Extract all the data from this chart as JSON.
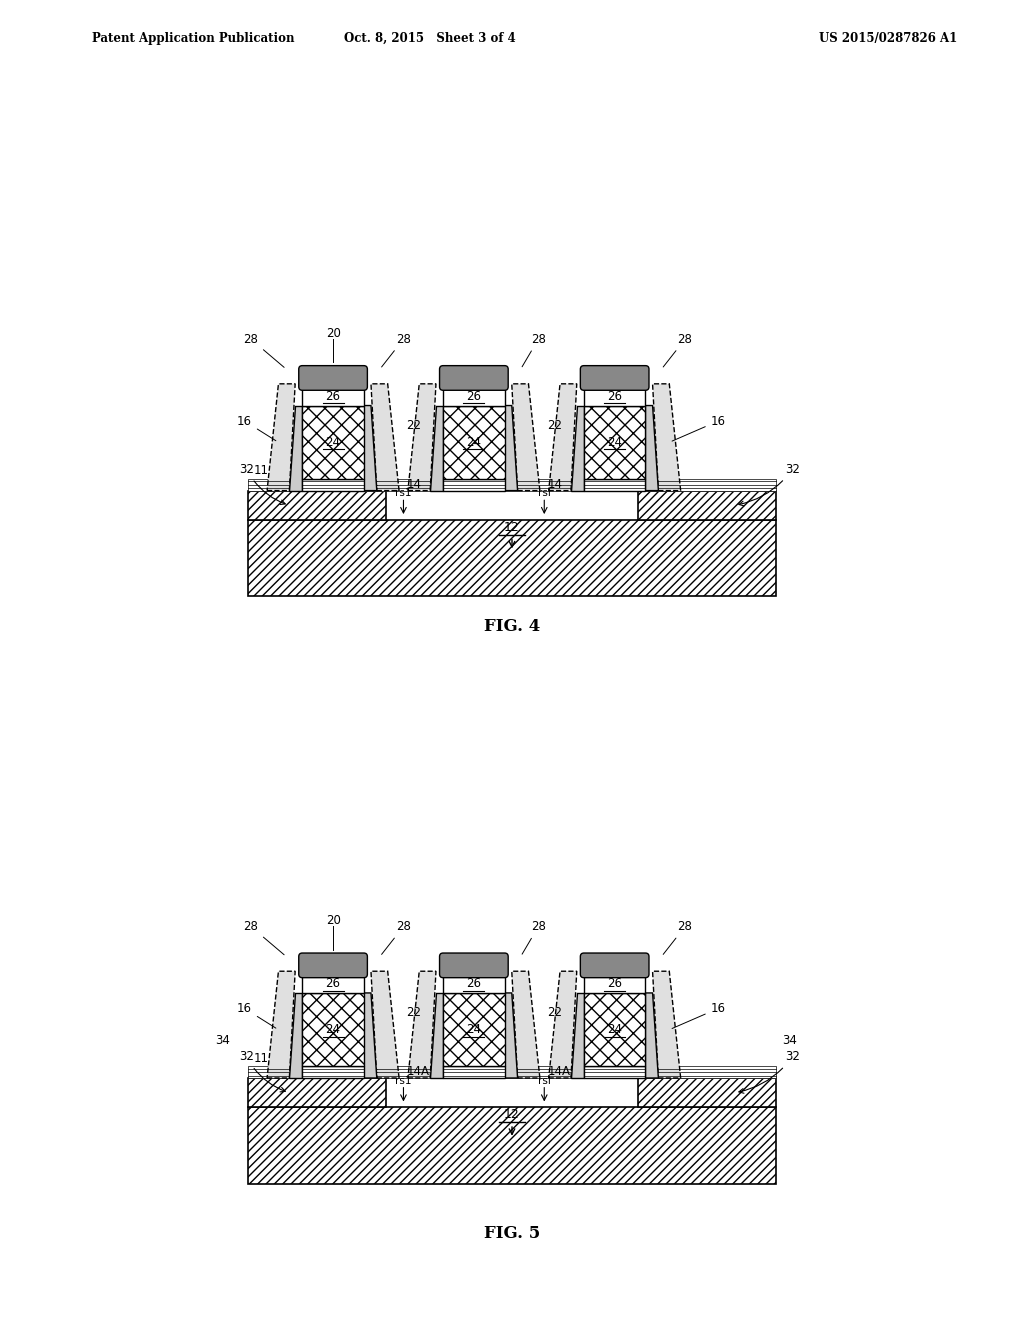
{
  "header_left": "Patent Application Publication",
  "header_mid": "Oct. 8, 2015   Sheet 3 of 4",
  "header_right": "US 2015/0287826 A1",
  "fig4_label": "FIG. 4",
  "fig5_label": "FIG. 5",
  "bg_color": "#ffffff"
}
